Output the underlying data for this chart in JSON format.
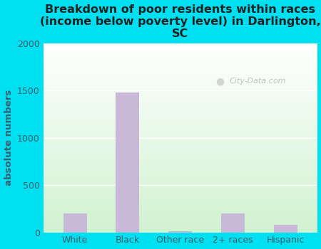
{
  "categories": [
    "White",
    "Black",
    "Other race",
    "2+ races",
    "Hispanic"
  ],
  "values": [
    200,
    1475,
    10,
    200,
    80
  ],
  "bar_color": "#c9b8d8",
  "title": "Breakdown of poor residents within races\n(income below poverty level) in Darlington,\nSC",
  "ylabel": "absolute numbers",
  "ylim": [
    0,
    2000
  ],
  "yticks": [
    0,
    500,
    1000,
    1500,
    2000
  ],
  "bg_color_outer": "#00e0f0",
  "watermark": "City-Data.com",
  "title_fontsize": 11.5,
  "ylabel_fontsize": 9.5,
  "tick_fontsize": 9,
  "title_color": "#222222",
  "label_color": "#3a6070"
}
